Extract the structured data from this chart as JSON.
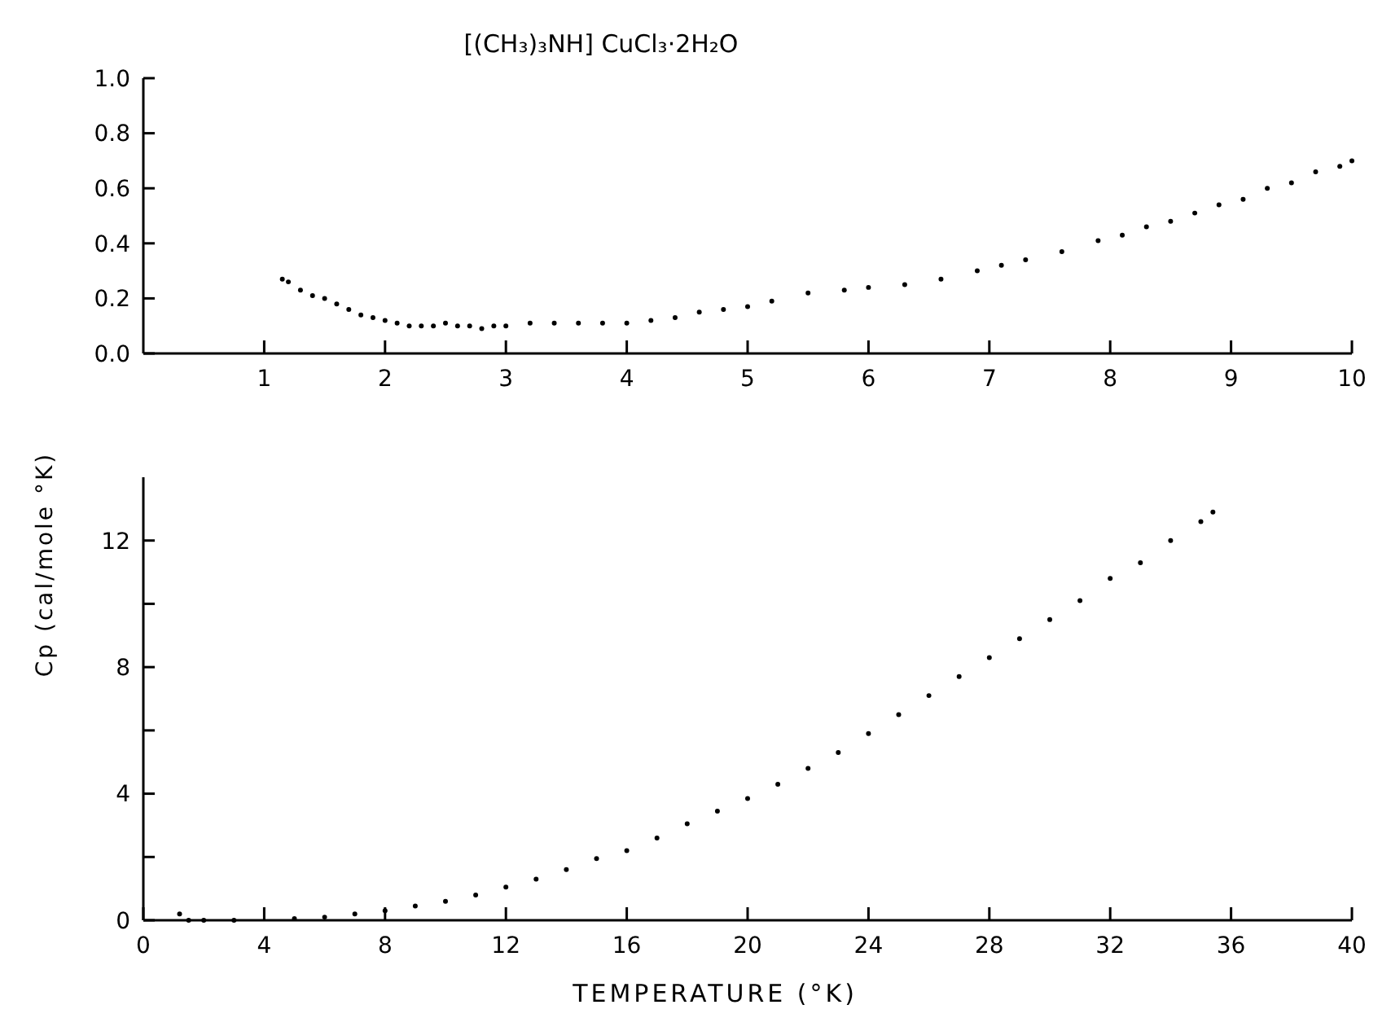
{
  "chart_data": [
    {
      "type": "scatter",
      "title": "[(CH₃)₃NH] CuCl₃·2H₂O",
      "marker": "circle",
      "grid": false,
      "x": [
        1.15,
        1.2,
        1.3,
        1.4,
        1.5,
        1.6,
        1.7,
        1.8,
        1.9,
        2.0,
        2.1,
        2.2,
        2.3,
        2.4,
        2.5,
        2.6,
        2.7,
        2.8,
        2.9,
        3.0,
        3.2,
        3.4,
        3.6,
        3.8,
        4.0,
        4.2,
        4.4,
        4.6,
        4.8,
        5.0,
        5.2,
        5.5,
        5.8,
        6.0,
        6.3,
        6.6,
        6.9,
        7.1,
        7.3,
        7.6,
        7.9,
        8.1,
        8.3,
        8.5,
        8.7,
        8.9,
        9.1,
        9.3,
        9.5,
        9.7,
        9.9,
        10.0
      ],
      "series": [
        {
          "color": "#000000",
          "values": [
            0.27,
            0.26,
            0.23,
            0.21,
            0.2,
            0.18,
            0.16,
            0.14,
            0.13,
            0.12,
            0.11,
            0.1,
            0.1,
            0.1,
            0.11,
            0.1,
            0.1,
            0.09,
            0.1,
            0.1,
            0.11,
            0.11,
            0.11,
            0.11,
            0.11,
            0.12,
            0.13,
            0.15,
            0.16,
            0.17,
            0.19,
            0.22,
            0.23,
            0.24,
            0.25,
            0.27,
            0.3,
            0.32,
            0.34,
            0.37,
            0.41,
            0.43,
            0.46,
            0.48,
            0.51,
            0.54,
            0.56,
            0.6,
            0.62,
            0.66,
            0.68,
            0.7
          ]
        }
      ],
      "xlim": [
        0,
        10
      ],
      "xticks": [
        1,
        2,
        3,
        4,
        5,
        6,
        7,
        8,
        9,
        10
      ],
      "ylim": [
        0,
        1
      ],
      "yticks": [
        {
          "value": 0,
          "label": "0.0"
        },
        {
          "value": 0.2,
          "label": "0.2"
        },
        {
          "value": 0.4,
          "label": "0.4"
        },
        {
          "value": 0.6,
          "label": "0.6"
        },
        {
          "value": 0.8,
          "label": "0.8"
        },
        {
          "value": 1,
          "label": "1.0"
        }
      ]
    },
    {
      "type": "scatter",
      "xlabel": "TEMPERATURE (°K)",
      "ylabel": "Cp (cal/mole °K)",
      "marker": "circle",
      "grid": false,
      "x": [
        1.2,
        1.5,
        2,
        3,
        5,
        6,
        7,
        8,
        9,
        10,
        11,
        12,
        13,
        14,
        15,
        16,
        17,
        18,
        19,
        20,
        21,
        22,
        23,
        24,
        25,
        26,
        27,
        28,
        29,
        30,
        31,
        32,
        33,
        34,
        35,
        35.4
      ],
      "series": [
        {
          "color": "#000000",
          "values": [
            0.2,
            0,
            0,
            0,
            0.05,
            0.1,
            0.2,
            0.3,
            0.45,
            0.6,
            0.8,
            1.05,
            1.3,
            1.6,
            1.95,
            2.2,
            2.6,
            3.05,
            3.45,
            3.85,
            4.3,
            4.8,
            5.3,
            5.9,
            6.5,
            7.1,
            7.7,
            8.3,
            8.9,
            9.5,
            10.1,
            10.8,
            11.3,
            12.0,
            12.6,
            12.9
          ]
        }
      ],
      "xlim": [
        0,
        40
      ],
      "xticks": [
        0,
        4,
        8,
        12,
        16,
        20,
        24,
        28,
        32,
        36,
        40
      ],
      "ylim": [
        0,
        14
      ],
      "yticks": [
        0,
        {
          "value": 2,
          "label": null
        },
        4,
        {
          "value": 6,
          "label": null
        },
        8,
        {
          "value": 10,
          "label": null
        },
        12
      ]
    }
  ]
}
